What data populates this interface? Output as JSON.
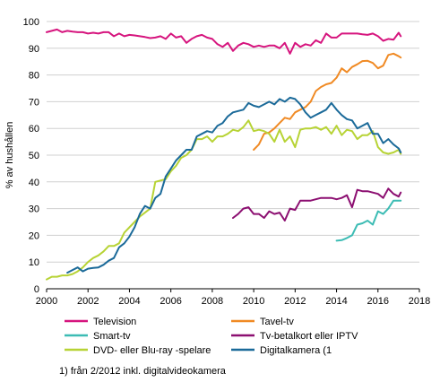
{
  "chart_data": {
    "type": "line",
    "xlim": [
      2000,
      2018
    ],
    "ylim": [
      0,
      100
    ],
    "xticks": [
      "2000",
      "2002",
      "2004",
      "2006",
      "2008",
      "2010",
      "2012",
      "2014",
      "2016",
      "2018"
    ],
    "yticks": [
      "0",
      "10",
      "20",
      "30",
      "40",
      "50",
      "60",
      "70",
      "80",
      "90",
      "100"
    ],
    "ylabel": "% av hushållen",
    "grid": "horizontal",
    "legend_position": "bottom",
    "series": [
      {
        "name": "Television",
        "color": "#d6157e",
        "points": [
          [
            2000.0,
            96
          ],
          [
            2000.25,
            96.5
          ],
          [
            2000.5,
            97
          ],
          [
            2000.75,
            96
          ],
          [
            2001.0,
            96.5
          ],
          [
            2001.25,
            96.2
          ],
          [
            2001.5,
            96
          ],
          [
            2001.75,
            96
          ],
          [
            2002.0,
            95.5
          ],
          [
            2002.25,
            95.8
          ],
          [
            2002.5,
            95.5
          ],
          [
            2002.75,
            96
          ],
          [
            2003.0,
            96
          ],
          [
            2003.25,
            94.5
          ],
          [
            2003.5,
            95.5
          ],
          [
            2003.75,
            94.5
          ],
          [
            2004.0,
            95
          ],
          [
            2004.25,
            94.8
          ],
          [
            2004.5,
            94.5
          ],
          [
            2004.75,
            94.2
          ],
          [
            2005.0,
            93.8
          ],
          [
            2005.25,
            94
          ],
          [
            2005.5,
            94.5
          ],
          [
            2005.75,
            93.5
          ],
          [
            2006.0,
            95.5
          ],
          [
            2006.25,
            94
          ],
          [
            2006.5,
            94.5
          ],
          [
            2006.75,
            92
          ],
          [
            2007.0,
            93.5
          ],
          [
            2007.25,
            94.5
          ],
          [
            2007.5,
            95
          ],
          [
            2007.75,
            94
          ],
          [
            2008.0,
            93.5
          ],
          [
            2008.25,
            91.5
          ],
          [
            2008.5,
            90.5
          ],
          [
            2008.75,
            92
          ],
          [
            2009.0,
            89
          ],
          [
            2009.25,
            91
          ],
          [
            2009.5,
            92
          ],
          [
            2009.75,
            91.5
          ],
          [
            2010.0,
            90.5
          ],
          [
            2010.25,
            91
          ],
          [
            2010.5,
            90.5
          ],
          [
            2010.75,
            91
          ],
          [
            2011.0,
            91
          ],
          [
            2011.25,
            90
          ],
          [
            2011.5,
            92
          ],
          [
            2011.75,
            88
          ],
          [
            2012.0,
            92
          ],
          [
            2012.25,
            90.5
          ],
          [
            2012.5,
            91.5
          ],
          [
            2012.75,
            91
          ],
          [
            2013.0,
            93
          ],
          [
            2013.25,
            92
          ],
          [
            2013.5,
            95.5
          ],
          [
            2013.75,
            94
          ],
          [
            2014.0,
            94
          ],
          [
            2014.25,
            95.5
          ],
          [
            2014.5,
            95.5
          ],
          [
            2014.75,
            95.5
          ],
          [
            2015.0,
            95.5
          ],
          [
            2015.25,
            95.2
          ],
          [
            2015.5,
            95
          ],
          [
            2015.75,
            95.5
          ],
          [
            2016.0,
            94.5
          ],
          [
            2016.25,
            92.8
          ],
          [
            2016.5,
            93.5
          ],
          [
            2016.75,
            93.2
          ],
          [
            2017.0,
            95.8
          ],
          [
            2017.1,
            94.5
          ]
        ]
      },
      {
        "name": "Tavel-tv",
        "color": "#f08a24",
        "points": [
          [
            2010.0,
            52
          ],
          [
            2010.25,
            54
          ],
          [
            2010.5,
            58
          ],
          [
            2010.75,
            58.5
          ],
          [
            2011.0,
            60
          ],
          [
            2011.25,
            62
          ],
          [
            2011.5,
            64
          ],
          [
            2011.75,
            63.5
          ],
          [
            2012.0,
            66
          ],
          [
            2012.25,
            67
          ],
          [
            2012.5,
            68
          ],
          [
            2012.75,
            70
          ],
          [
            2013.0,
            74
          ],
          [
            2013.25,
            75.5
          ],
          [
            2013.5,
            76.5
          ],
          [
            2013.75,
            77
          ],
          [
            2014.0,
            79
          ],
          [
            2014.25,
            82.5
          ],
          [
            2014.5,
            81
          ],
          [
            2014.75,
            83
          ],
          [
            2015.0,
            84
          ],
          [
            2015.25,
            85.2
          ],
          [
            2015.5,
            85.3
          ],
          [
            2015.75,
            84.5
          ],
          [
            2016.0,
            82.5
          ],
          [
            2016.25,
            83.5
          ],
          [
            2016.5,
            87.5
          ],
          [
            2016.75,
            88
          ],
          [
            2017.0,
            87
          ],
          [
            2017.1,
            86.5
          ]
        ]
      },
      {
        "name": "Smart-tv",
        "color": "#3cbcb4",
        "points": [
          [
            2014.0,
            18
          ],
          [
            2014.25,
            18.2
          ],
          [
            2014.5,
            19
          ],
          [
            2014.75,
            20
          ],
          [
            2015.0,
            24
          ],
          [
            2015.25,
            24.5
          ],
          [
            2015.5,
            25.5
          ],
          [
            2015.75,
            24
          ],
          [
            2016.0,
            29
          ],
          [
            2016.25,
            28
          ],
          [
            2016.5,
            30
          ],
          [
            2016.75,
            33
          ],
          [
            2017.0,
            33
          ],
          [
            2017.1,
            33
          ]
        ]
      },
      {
        "name": "Tv-betalkort eller IPTV",
        "color": "#8c0f71",
        "points": [
          [
            2009.0,
            26.5
          ],
          [
            2009.25,
            28
          ],
          [
            2009.5,
            30
          ],
          [
            2009.75,
            30.5
          ],
          [
            2010.0,
            28
          ],
          [
            2010.25,
            28
          ],
          [
            2010.5,
            26.5
          ],
          [
            2010.75,
            29
          ],
          [
            2011.0,
            28
          ],
          [
            2011.25,
            28.5
          ],
          [
            2011.5,
            25.5
          ],
          [
            2011.75,
            30
          ],
          [
            2012.0,
            29.5
          ],
          [
            2012.25,
            33
          ],
          [
            2012.5,
            33
          ],
          [
            2012.75,
            33
          ],
          [
            2013.0,
            33.5
          ],
          [
            2013.25,
            34
          ],
          [
            2013.5,
            34
          ],
          [
            2013.75,
            34
          ],
          [
            2014.0,
            33.5
          ],
          [
            2014.25,
            34
          ],
          [
            2014.5,
            35
          ],
          [
            2014.75,
            30.5
          ],
          [
            2015.0,
            37
          ],
          [
            2015.25,
            36.5
          ],
          [
            2015.5,
            36.5
          ],
          [
            2015.75,
            36
          ],
          [
            2016.0,
            35.5
          ],
          [
            2016.25,
            34
          ],
          [
            2016.5,
            37.5
          ],
          [
            2016.75,
            35.5
          ],
          [
            2017.0,
            34.5
          ],
          [
            2017.1,
            36
          ]
        ]
      },
      {
        "name": "DVD- eller Blu-ray -spelare",
        "color": "#b7d335",
        "points": [
          [
            2000.0,
            3.5
          ],
          [
            2000.25,
            4.5
          ],
          [
            2000.5,
            4.5
          ],
          [
            2000.75,
            5
          ],
          [
            2001.0,
            5
          ],
          [
            2001.25,
            5.5
          ],
          [
            2001.5,
            6.5
          ],
          [
            2001.75,
            8
          ],
          [
            2002.0,
            10
          ],
          [
            2002.25,
            11.5
          ],
          [
            2002.5,
            12.5
          ],
          [
            2002.75,
            14
          ],
          [
            2003.0,
            16
          ],
          [
            2003.25,
            16
          ],
          [
            2003.5,
            17
          ],
          [
            2003.75,
            21
          ],
          [
            2004.0,
            23
          ],
          [
            2004.25,
            25
          ],
          [
            2004.5,
            27
          ],
          [
            2004.75,
            28.5
          ],
          [
            2005.0,
            30
          ],
          [
            2005.25,
            40
          ],
          [
            2005.5,
            40.5
          ],
          [
            2005.75,
            41
          ],
          [
            2006.0,
            44
          ],
          [
            2006.25,
            46
          ],
          [
            2006.5,
            49
          ],
          [
            2006.75,
            50
          ],
          [
            2007.0,
            52
          ],
          [
            2007.25,
            56
          ],
          [
            2007.5,
            56
          ],
          [
            2007.75,
            57
          ],
          [
            2008.0,
            55
          ],
          [
            2008.25,
            57
          ],
          [
            2008.5,
            57
          ],
          [
            2008.75,
            58
          ],
          [
            2009.0,
            59.5
          ],
          [
            2009.25,
            59
          ],
          [
            2009.5,
            60.5
          ],
          [
            2009.75,
            63
          ],
          [
            2010.0,
            59
          ],
          [
            2010.25,
            59.5
          ],
          [
            2010.5,
            59
          ],
          [
            2010.75,
            58
          ],
          [
            2011.0,
            55
          ],
          [
            2011.25,
            59.5
          ],
          [
            2011.5,
            55
          ],
          [
            2011.75,
            57
          ],
          [
            2012.0,
            53
          ],
          [
            2012.25,
            59.5
          ],
          [
            2012.5,
            60
          ],
          [
            2012.75,
            60
          ],
          [
            2013.0,
            60.5
          ],
          [
            2013.25,
            59.5
          ],
          [
            2013.5,
            60.5
          ],
          [
            2013.75,
            58
          ],
          [
            2014.0,
            61
          ],
          [
            2014.25,
            57.5
          ],
          [
            2014.5,
            59.5
          ],
          [
            2014.75,
            59
          ],
          [
            2015.0,
            56
          ],
          [
            2015.25,
            57.5
          ],
          [
            2015.5,
            57.5
          ],
          [
            2015.75,
            59
          ],
          [
            2016.0,
            53
          ],
          [
            2016.25,
            51
          ],
          [
            2016.5,
            50.5
          ],
          [
            2016.75,
            51
          ],
          [
            2017.0,
            52
          ],
          [
            2017.1,
            50.5
          ]
        ]
      },
      {
        "name": "Digitalkamera (1",
        "color": "#1b6a99",
        "points": [
          [
            2001.0,
            6
          ],
          [
            2001.25,
            7
          ],
          [
            2001.5,
            8
          ],
          [
            2001.75,
            6.5
          ],
          [
            2002.0,
            7.5
          ],
          [
            2002.25,
            7.8
          ],
          [
            2002.5,
            8
          ],
          [
            2002.75,
            9
          ],
          [
            2003.0,
            10.5
          ],
          [
            2003.25,
            11.5
          ],
          [
            2003.5,
            15.5
          ],
          [
            2003.75,
            17
          ],
          [
            2004.0,
            19.5
          ],
          [
            2004.25,
            23
          ],
          [
            2004.5,
            28
          ],
          [
            2004.75,
            31
          ],
          [
            2005.0,
            30
          ],
          [
            2005.25,
            34
          ],
          [
            2005.5,
            35.5
          ],
          [
            2005.75,
            42
          ],
          [
            2006.0,
            45
          ],
          [
            2006.25,
            48
          ],
          [
            2006.5,
            50
          ],
          [
            2006.75,
            52
          ],
          [
            2007.0,
            52
          ],
          [
            2007.25,
            57
          ],
          [
            2007.5,
            58
          ],
          [
            2007.75,
            59
          ],
          [
            2008.0,
            58.5
          ],
          [
            2008.25,
            61
          ],
          [
            2008.5,
            62
          ],
          [
            2008.75,
            64.5
          ],
          [
            2009.0,
            66
          ],
          [
            2009.25,
            66.5
          ],
          [
            2009.5,
            67
          ],
          [
            2009.75,
            69.5
          ],
          [
            2010.0,
            68.5
          ],
          [
            2010.25,
            68
          ],
          [
            2010.5,
            69
          ],
          [
            2010.75,
            70
          ],
          [
            2011.0,
            69
          ],
          [
            2011.25,
            71
          ],
          [
            2011.5,
            70
          ],
          [
            2011.75,
            71.5
          ],
          [
            2012.0,
            71
          ],
          [
            2012.25,
            69
          ],
          [
            2012.5,
            66
          ],
          [
            2012.75,
            64
          ],
          [
            2013.0,
            65
          ],
          [
            2013.25,
            66
          ],
          [
            2013.5,
            67
          ],
          [
            2013.75,
            69.5
          ],
          [
            2014.0,
            67
          ],
          [
            2014.25,
            65
          ],
          [
            2014.5,
            63.5
          ],
          [
            2014.75,
            63
          ],
          [
            2015.0,
            60
          ],
          [
            2015.25,
            61
          ],
          [
            2015.5,
            62
          ],
          [
            2015.75,
            58
          ],
          [
            2016.0,
            58
          ],
          [
            2016.25,
            54.5
          ],
          [
            2016.5,
            56
          ],
          [
            2016.75,
            54
          ],
          [
            2017.0,
            52.5
          ],
          [
            2017.1,
            51
          ]
        ]
      }
    ]
  },
  "footnote": "1) från 2/2012 inkl. digitalvideokamera"
}
